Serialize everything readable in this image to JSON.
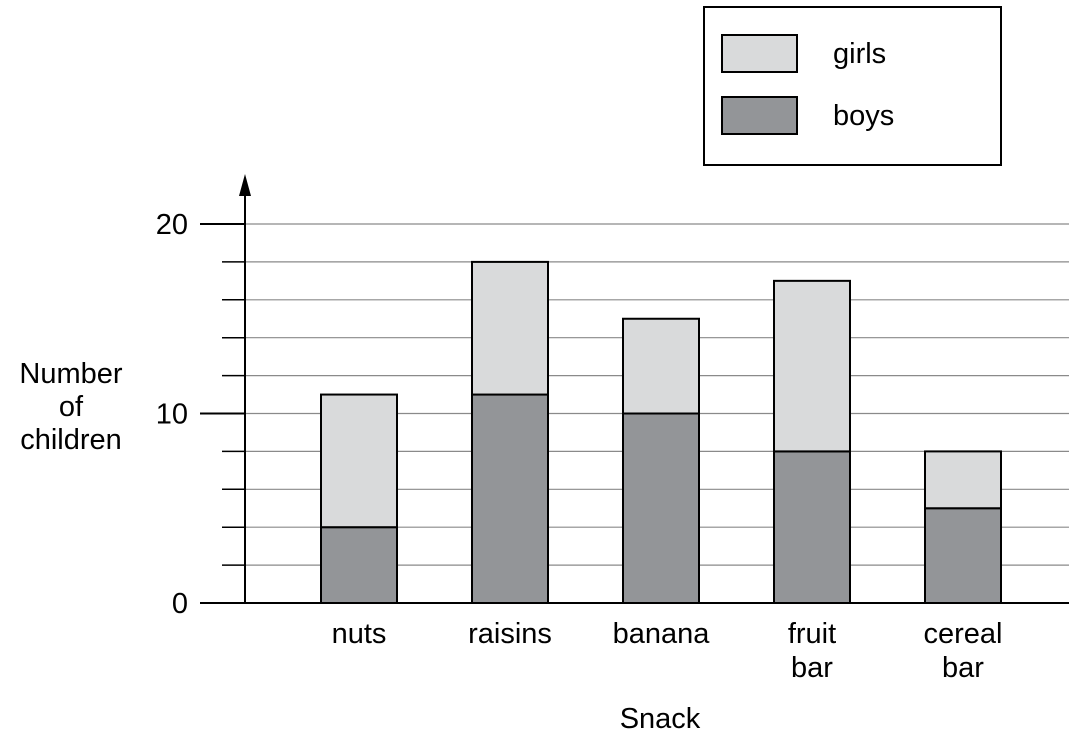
{
  "chart_data": {
    "type": "bar",
    "stacked": true,
    "title": "",
    "xlabel": "Snack",
    "ylabel": [
      "Number",
      "of",
      "children"
    ],
    "categories": [
      [
        "nuts"
      ],
      [
        "raisins"
      ],
      [
        "banana"
      ],
      [
        "fruit",
        "bar"
      ],
      [
        "cereal",
        "bar"
      ]
    ],
    "series": [
      {
        "name": "boys",
        "values": [
          4,
          11,
          10,
          8,
          5
        ],
        "color": "#939598"
      },
      {
        "name": "girls",
        "values": [
          7,
          7,
          5,
          9,
          3
        ],
        "color": "#d9dadb"
      }
    ],
    "ylim": [
      0,
      20
    ],
    "y_major_ticks": [
      0,
      10,
      20
    ],
    "y_minor_step": 2,
    "grid": true,
    "legend_position": "top-right",
    "legend_order": [
      "girls",
      "boys"
    ]
  }
}
